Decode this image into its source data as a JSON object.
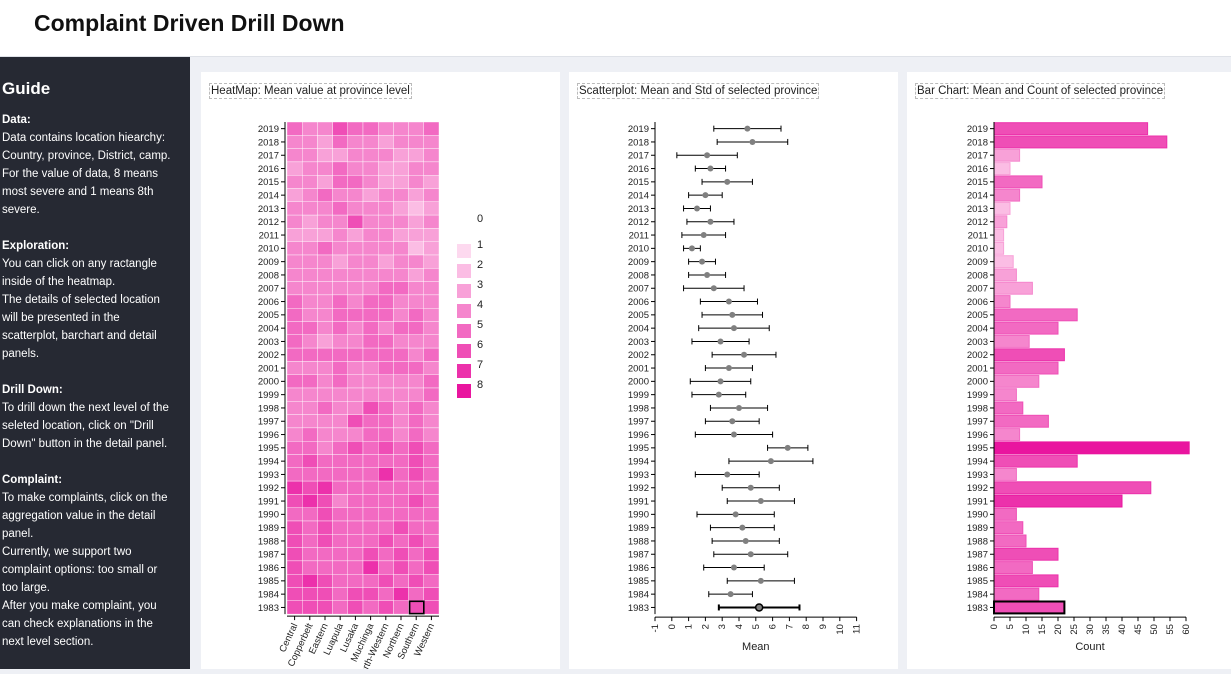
{
  "header": {
    "title": "Complaint Driven Drill Down"
  },
  "guide": {
    "title": "Guide",
    "sections": [
      {
        "heading": "Data:",
        "lines": [
          "Data contains location hiearchy:",
          "Country, province, District, camp.",
          "For the value of data, 8 means",
          "most severe and 1 means 8th",
          "severe."
        ]
      },
      {
        "heading": "Exploration:",
        "lines": [
          "You can click on any ractangle",
          "inside of the heatmap.",
          "The details of selected location",
          "will be presented in the",
          "scatterplot, barchart and detail",
          "panels."
        ]
      },
      {
        "heading": "Drill Down:",
        "lines": [
          "To drill down the next level of the",
          "seleted location, click on \"Drill",
          "Down\" button in the detail panel."
        ]
      },
      {
        "heading": "Complaint:",
        "lines": [
          "To make complaints, click on the",
          "aggregation value in the detail",
          "panel.",
          "Currently, we support two",
          "complaint options: too small or",
          "too large.",
          "After you make complaint, you",
          "can check explanations in the",
          "next level section."
        ]
      }
    ]
  },
  "panels": {
    "heatmap_title": "HeatMap: Mean value at province level",
    "scatter_title": "Scatterplot: Mean and Std of selected province",
    "bar_title": "Bar Chart: Mean and Count of selected province"
  },
  "colors": {
    "scale": [
      "#ffffff",
      "#fdd9ef",
      "#fbbde4",
      "#f8a1d8",
      "#f586cd",
      "#f26ac2",
      "#ef4eb6",
      "#ec31ab",
      "#e9159f"
    ],
    "marker": "#808080",
    "selected_stroke": "#000000"
  },
  "chart_data": [
    {
      "type": "heatmap",
      "title": "HeatMap: Mean value at province level",
      "years": [
        "2019",
        "2018",
        "2017",
        "2016",
        "2015",
        "2014",
        "2013",
        "2012",
        "2011",
        "2010",
        "2009",
        "2008",
        "2007",
        "2006",
        "2005",
        "2004",
        "2003",
        "2002",
        "2001",
        "2000",
        "1999",
        "1998",
        "1997",
        "1996",
        "1995",
        "1994",
        "1993",
        "1992",
        "1991",
        "1990",
        "1989",
        "1988",
        "1987",
        "1986",
        "1985",
        "1984",
        "1983"
      ],
      "provinces": [
        "Central",
        "Copperbelt",
        "Eastern",
        "Luapula",
        "Lusaka",
        "Muchinga",
        "North-Western",
        "Northern",
        "Southern",
        "Western"
      ],
      "legend": [
        "0",
        "1",
        "2",
        "3",
        "4",
        "5",
        "6",
        "7",
        "8"
      ],
      "values": [
        [
          5,
          4,
          4,
          6,
          5,
          5,
          4,
          4,
          4,
          5
        ],
        [
          4,
          4,
          3,
          5,
          4,
          4,
          3,
          4,
          4,
          4
        ],
        [
          4,
          4,
          3,
          3,
          4,
          4,
          4,
          3,
          3,
          4
        ],
        [
          3,
          4,
          4,
          5,
          4,
          4,
          3,
          3,
          4,
          4
        ],
        [
          4,
          4,
          3,
          5,
          5,
          4,
          3,
          3,
          4,
          3
        ],
        [
          3,
          4,
          5,
          4,
          4,
          3,
          4,
          4,
          3,
          4
        ],
        [
          4,
          4,
          4,
          5,
          4,
          4,
          4,
          3,
          2,
          3
        ],
        [
          4,
          3,
          4,
          4,
          6,
          4,
          4,
          4,
          3,
          4
        ],
        [
          3,
          3,
          3,
          4,
          3,
          4,
          4,
          3,
          3,
          3
        ],
        [
          4,
          4,
          5,
          4,
          4,
          4,
          4,
          4,
          2,
          3
        ],
        [
          4,
          4,
          4,
          3,
          4,
          4,
          3,
          4,
          4,
          3
        ],
        [
          4,
          4,
          4,
          4,
          4,
          4,
          4,
          4,
          3,
          4
        ],
        [
          4,
          4,
          4,
          4,
          4,
          4,
          5,
          5,
          4,
          4
        ],
        [
          5,
          4,
          4,
          5,
          4,
          5,
          5,
          4,
          4,
          4
        ],
        [
          5,
          4,
          4,
          5,
          5,
          5,
          5,
          4,
          5,
          4
        ],
        [
          5,
          5,
          4,
          5,
          4,
          5,
          4,
          5,
          5,
          4
        ],
        [
          5,
          4,
          3,
          4,
          4,
          5,
          5,
          4,
          4,
          4
        ],
        [
          5,
          5,
          5,
          5,
          5,
          5,
          5,
          5,
          4,
          5
        ],
        [
          4,
          4,
          4,
          5,
          4,
          4,
          5,
          5,
          5,
          4
        ],
        [
          5,
          5,
          4,
          5,
          4,
          4,
          4,
          4,
          4,
          5
        ],
        [
          4,
          4,
          4,
          4,
          4,
          4,
          4,
          4,
          4,
          5
        ],
        [
          4,
          4,
          5,
          4,
          4,
          6,
          5,
          4,
          5,
          4
        ],
        [
          4,
          4,
          4,
          4,
          6,
          5,
          5,
          4,
          5,
          4
        ],
        [
          4,
          5,
          4,
          4,
          4,
          5,
          5,
          4,
          5,
          4
        ],
        [
          5,
          5,
          4,
          5,
          6,
          5,
          6,
          5,
          6,
          5
        ],
        [
          5,
          6,
          5,
          5,
          5,
          5,
          5,
          5,
          6,
          5
        ],
        [
          5,
          5,
          5,
          5,
          5,
          5,
          7,
          5,
          6,
          5
        ],
        [
          7,
          6,
          7,
          5,
          5,
          5,
          5,
          5,
          5,
          5
        ],
        [
          6,
          7,
          6,
          4,
          5,
          5,
          5,
          5,
          6,
          5
        ],
        [
          5,
          5,
          6,
          5,
          5,
          5,
          5,
          5,
          5,
          5
        ],
        [
          6,
          5,
          6,
          5,
          5,
          5,
          5,
          6,
          5,
          5
        ],
        [
          6,
          5,
          6,
          5,
          5,
          5,
          6,
          5,
          6,
          5
        ],
        [
          6,
          5,
          5,
          5,
          5,
          6,
          5,
          6,
          5,
          6
        ],
        [
          6,
          5,
          5,
          5,
          5,
          7,
          5,
          6,
          5,
          6
        ],
        [
          6,
          7,
          6,
          5,
          5,
          5,
          6,
          5,
          6,
          5
        ],
        [
          6,
          6,
          6,
          5,
          6,
          6,
          5,
          7,
          5,
          6
        ],
        [
          6,
          6,
          6,
          5,
          6,
          5,
          6,
          5,
          6,
          6
        ]
      ],
      "selected": {
        "year": "1983",
        "province": "Southern"
      }
    },
    {
      "type": "scatter",
      "title": "Scatterplot: Mean and Std of selected province",
      "xlabel": "Mean",
      "xlim": [
        -1,
        11
      ],
      "xticks": [
        -1,
        0,
        1,
        2,
        3,
        4,
        5,
        6,
        7,
        8,
        9,
        10,
        11
      ],
      "years": [
        "2019",
        "2018",
        "2017",
        "2016",
        "2015",
        "2014",
        "2013",
        "2012",
        "2011",
        "2010",
        "2009",
        "2008",
        "2007",
        "2006",
        "2005",
        "2004",
        "2003",
        "2002",
        "2001",
        "2000",
        "1999",
        "1998",
        "1997",
        "1996",
        "1995",
        "1994",
        "1993",
        "1992",
        "1991",
        "1990",
        "1989",
        "1988",
        "1987",
        "1986",
        "1985",
        "1984",
        "1983"
      ],
      "means": [
        4.5,
        4.8,
        2.1,
        2.3,
        3.3,
        2.0,
        1.5,
        2.3,
        1.9,
        1.2,
        1.8,
        2.1,
        2.5,
        3.4,
        3.6,
        3.7,
        2.9,
        4.3,
        3.4,
        2.9,
        2.8,
        4.0,
        3.6,
        3.7,
        6.9,
        5.9,
        3.3,
        4.7,
        5.3,
        3.8,
        4.2,
        4.4,
        4.7,
        3.7,
        5.3,
        3.5,
        5.2
      ],
      "stds": [
        2.0,
        2.1,
        1.8,
        0.9,
        1.5,
        1.0,
        0.8,
        1.4,
        1.3,
        0.5,
        0.8,
        1.1,
        1.8,
        1.7,
        1.8,
        2.1,
        1.7,
        1.9,
        1.4,
        1.8,
        1.6,
        1.7,
        1.6,
        2.3,
        1.2,
        2.5,
        1.9,
        1.7,
        2.0,
        2.3,
        1.9,
        2.0,
        2.2,
        1.8,
        2.0,
        1.3,
        2.4
      ],
      "selected": "1983"
    },
    {
      "type": "bar",
      "title": "Bar Chart: Mean and Count of selected province",
      "xlabel": "Count",
      "xlim": [
        0,
        60
      ],
      "xticks": [
        0,
        5,
        10,
        15,
        20,
        25,
        30,
        35,
        40,
        45,
        50,
        55,
        60
      ],
      "years": [
        "2019",
        "2018",
        "2017",
        "2016",
        "2015",
        "2014",
        "2013",
        "2012",
        "2011",
        "2010",
        "2009",
        "2008",
        "2007",
        "2006",
        "2005",
        "2004",
        "2003",
        "2002",
        "2001",
        "2000",
        "1999",
        "1998",
        "1997",
        "1996",
        "1995",
        "1994",
        "1993",
        "1992",
        "1991",
        "1990",
        "1989",
        "1988",
        "1987",
        "1986",
        "1985",
        "1984",
        "1983"
      ],
      "counts": [
        48,
        54,
        8,
        5,
        15,
        8,
        5,
        4,
        3,
        3,
        6,
        7,
        12,
        5,
        26,
        20,
        11,
        22,
        20,
        14,
        7,
        9,
        17,
        8,
        61,
        26,
        7,
        49,
        40,
        7,
        9,
        10,
        20,
        12,
        20,
        14,
        22
      ],
      "levels": [
        6,
        6,
        3,
        2,
        5,
        4,
        2,
        3,
        2,
        2,
        2,
        3,
        3,
        4,
        5,
        5,
        4,
        6,
        5,
        4,
        4,
        5,
        5,
        4,
        8,
        6,
        4,
        6,
        7,
        5,
        5,
        5,
        6,
        5,
        6,
        5,
        6
      ],
      "selected": "1983"
    }
  ]
}
